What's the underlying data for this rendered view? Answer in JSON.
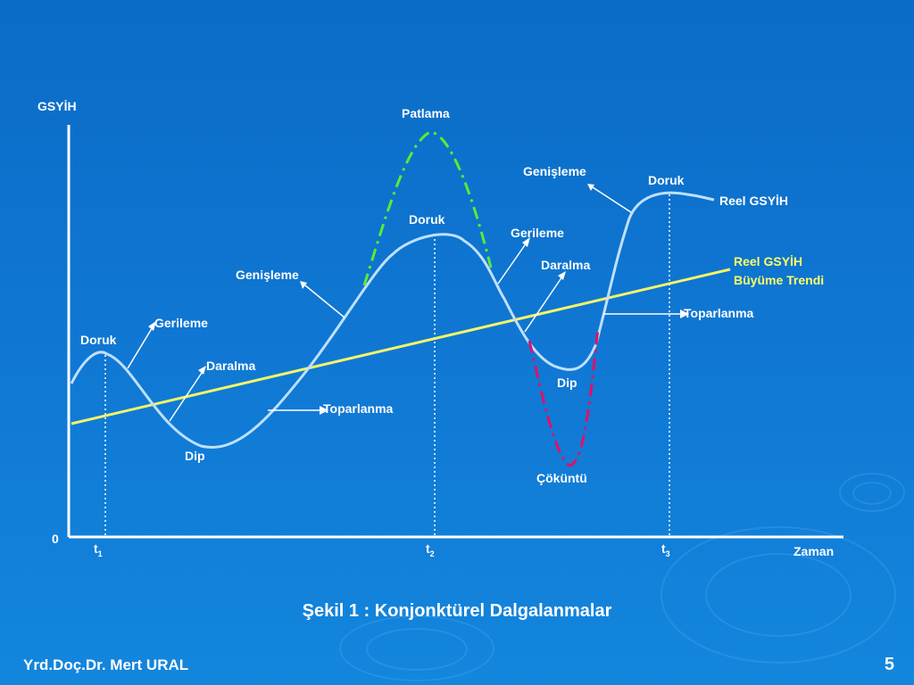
{
  "diagram": {
    "axis": {
      "y_label": "GSYİH",
      "x_label": "Zaman",
      "origin": "0",
      "ticks": [
        {
          "base": "t",
          "sub": "1"
        },
        {
          "base": "t",
          "sub": "2"
        },
        {
          "base": "t",
          "sub": "3"
        }
      ]
    },
    "curves": {
      "real_gdp": "Reel GSYİH",
      "trend_line1": "Reel GSYİH",
      "trend_line2": "Büyüme Trendi",
      "boom": "Patlama",
      "crash": "Çöküntü"
    },
    "phase_labels": {
      "peak1": "Doruk",
      "recession1": "Gerileme",
      "contraction1": "Daralma",
      "trough1": "Dip",
      "recovery1": "Toparlanma",
      "expansion1": "Genişleme",
      "peak2": "Doruk",
      "recession2": "Gerileme",
      "contraction2": "Daralma",
      "trough2": "Dip",
      "recovery2": "Toparlanma",
      "expansion2": "Genişleme",
      "peak3": "Doruk"
    },
    "colors": {
      "curve": "#bfe0ff",
      "trend": "#f4f46a",
      "boom": "#55ee33",
      "crash": "#e0106a",
      "text": "#ffffff"
    }
  },
  "caption": "Şekil 1 : Konjonktürel Dalgalanmalar",
  "footer": {
    "author": "Yrd.Doç.Dr. Mert URAL",
    "page_number": "5"
  }
}
